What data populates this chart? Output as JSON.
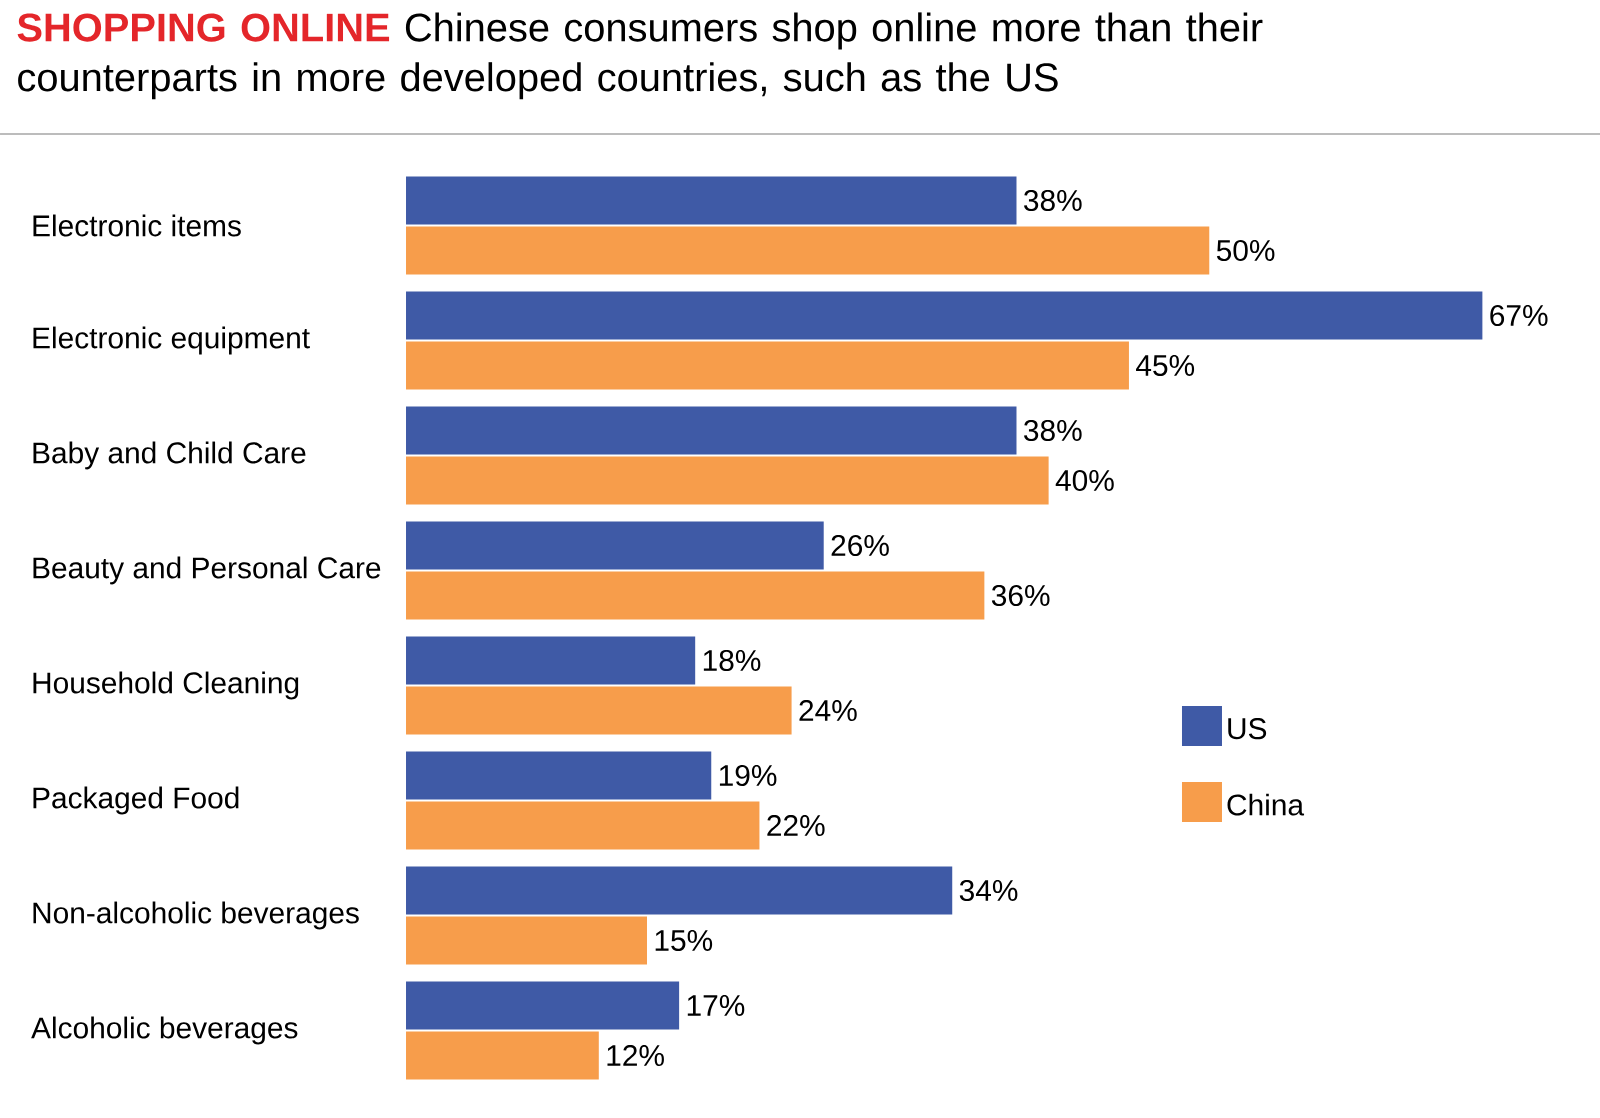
{
  "chart_data": {
    "type": "bar",
    "orientation": "horizontal",
    "title": "SHOPPING ONLINE",
    "subtitle": "Chinese consumers shop online more than their counterparts in more developed countries, such as the US",
    "categories": [
      "Electronic items",
      "Electronic equipment",
      "Baby and Child Care",
      "Beauty and Personal Care",
      "Household Cleaning",
      "Packaged Food",
      "Non-alcoholic beverages",
      "Alcoholic beverages"
    ],
    "series": [
      {
        "name": "US",
        "color": "#3f5aa6",
        "values": [
          38,
          67,
          38,
          26,
          18,
          19,
          34,
          17
        ],
        "value_labels": [
          "38%",
          "67%",
          "38%",
          "26%",
          "18%",
          "19%",
          "34%",
          "17%"
        ]
      },
      {
        "name": "China",
        "color": "#f79d4b",
        "values": [
          50,
          45,
          40,
          36,
          24,
          22,
          15,
          12
        ],
        "value_labels": [
          "50%",
          "45%",
          "40%",
          "36%",
          "24%",
          "22%",
          "15%",
          "12%"
        ]
      }
    ],
    "legend": "right"
  }
}
